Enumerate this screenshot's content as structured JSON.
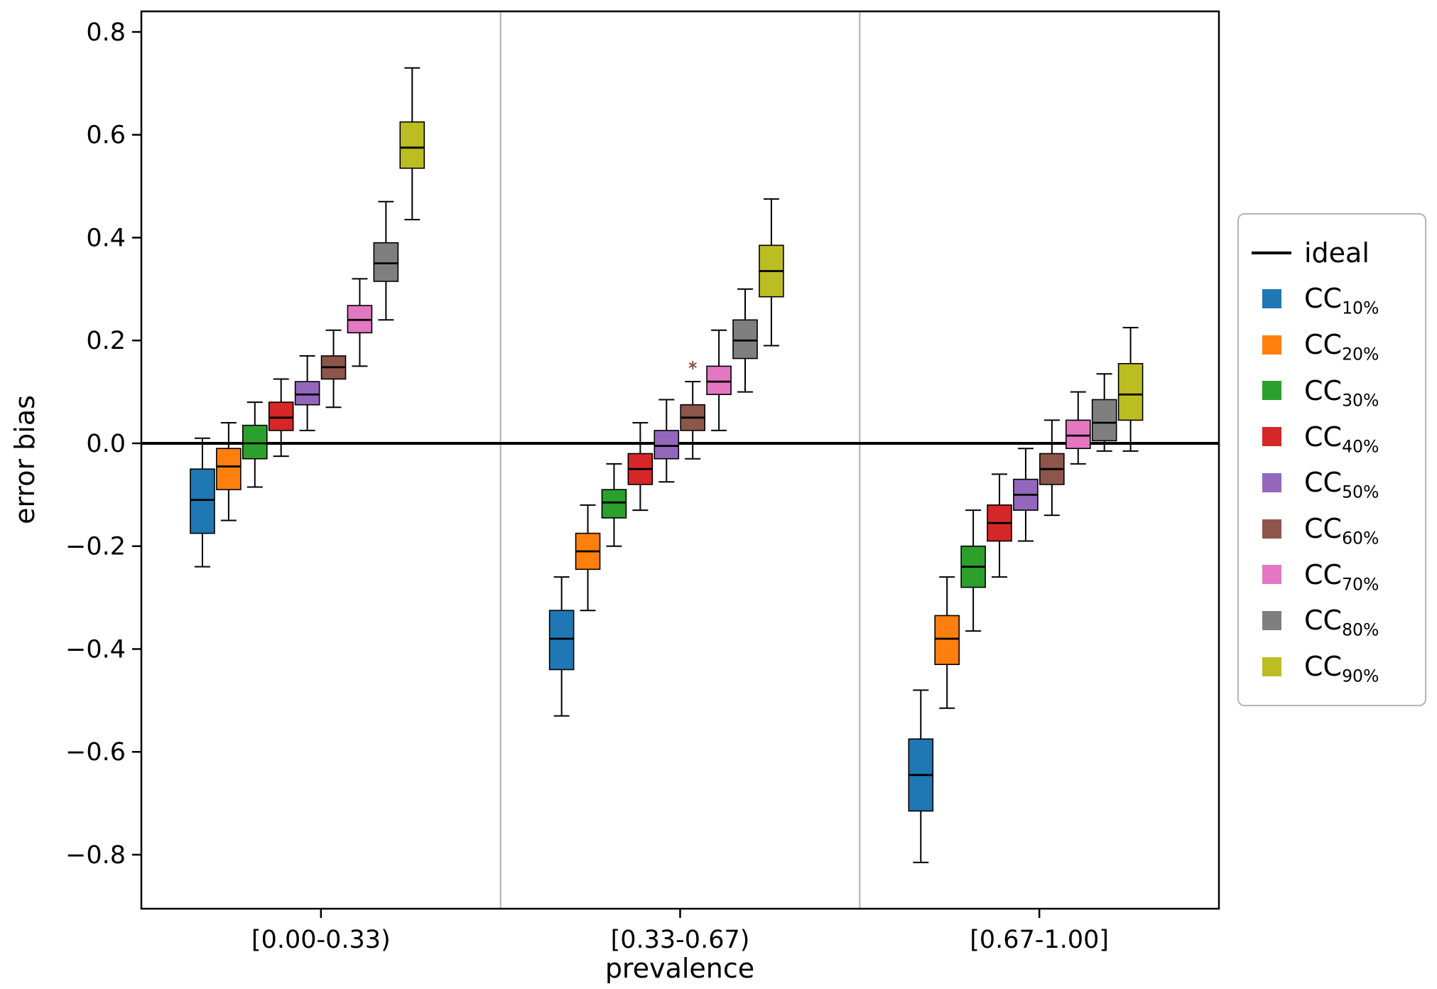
{
  "figure": {
    "background": "#ffffff"
  },
  "chart_data": {
    "type": "boxplot",
    "title": "",
    "xlabel": "prevalence",
    "ylabel": "error bias",
    "ylim": [
      -0.905,
      0.84
    ],
    "yticks": [
      0.8,
      0.6,
      0.4,
      0.2,
      0.0,
      -0.2,
      -0.4,
      -0.6,
      -0.8
    ],
    "categories": [
      "[0.00-0.33)",
      "[0.33-0.67)",
      "[0.67-1.00]"
    ],
    "grid": "vertical-separators-between-groups",
    "legend_position": "right-outside",
    "ideal": {
      "label": "ideal",
      "y": 0.0,
      "color": "#000000"
    },
    "series": [
      {
        "label": "CC",
        "sub": "10%",
        "color": "#1f77b4",
        "boxes": [
          {
            "whisker_low": -0.24,
            "q1": -0.175,
            "median": -0.11,
            "q3": -0.05,
            "whisker_high": 0.01,
            "outliers": []
          },
          {
            "whisker_low": -0.53,
            "q1": -0.44,
            "median": -0.38,
            "q3": -0.325,
            "whisker_high": -0.26,
            "outliers": []
          },
          {
            "whisker_low": -0.815,
            "q1": -0.715,
            "median": -0.645,
            "q3": -0.575,
            "whisker_high": -0.48,
            "outliers": []
          }
        ]
      },
      {
        "label": "CC",
        "sub": "20%",
        "color": "#ff7f0e",
        "boxes": [
          {
            "whisker_low": -0.15,
            "q1": -0.09,
            "median": -0.045,
            "q3": -0.01,
            "whisker_high": 0.04,
            "outliers": []
          },
          {
            "whisker_low": -0.325,
            "q1": -0.245,
            "median": -0.21,
            "q3": -0.175,
            "whisker_high": -0.12,
            "outliers": []
          },
          {
            "whisker_low": -0.515,
            "q1": -0.43,
            "median": -0.38,
            "q3": -0.335,
            "whisker_high": -0.26,
            "outliers": []
          }
        ]
      },
      {
        "label": "CC",
        "sub": "30%",
        "color": "#2ca02c",
        "boxes": [
          {
            "whisker_low": -0.085,
            "q1": -0.03,
            "median": 0.0,
            "q3": 0.035,
            "whisker_high": 0.08,
            "outliers": []
          },
          {
            "whisker_low": -0.2,
            "q1": -0.145,
            "median": -0.115,
            "q3": -0.09,
            "whisker_high": -0.04,
            "outliers": []
          },
          {
            "whisker_low": -0.365,
            "q1": -0.28,
            "median": -0.24,
            "q3": -0.2,
            "whisker_high": -0.13,
            "outliers": []
          }
        ]
      },
      {
        "label": "CC",
        "sub": "40%",
        "color": "#d62728",
        "boxes": [
          {
            "whisker_low": -0.025,
            "q1": 0.025,
            "median": 0.05,
            "q3": 0.08,
            "whisker_high": 0.125,
            "outliers": []
          },
          {
            "whisker_low": -0.13,
            "q1": -0.08,
            "median": -0.05,
            "q3": -0.02,
            "whisker_high": 0.04,
            "outliers": []
          },
          {
            "whisker_low": -0.26,
            "q1": -0.19,
            "median": -0.155,
            "q3": -0.12,
            "whisker_high": -0.06,
            "outliers": []
          }
        ]
      },
      {
        "label": "CC",
        "sub": "50%",
        "color": "#9467bd",
        "boxes": [
          {
            "whisker_low": 0.025,
            "q1": 0.075,
            "median": 0.095,
            "q3": 0.12,
            "whisker_high": 0.17,
            "outliers": []
          },
          {
            "whisker_low": -0.075,
            "q1": -0.03,
            "median": -0.005,
            "q3": 0.025,
            "whisker_high": 0.085,
            "outliers": []
          },
          {
            "whisker_low": -0.19,
            "q1": -0.13,
            "median": -0.1,
            "q3": -0.07,
            "whisker_high": -0.01,
            "outliers": []
          }
        ]
      },
      {
        "label": "CC",
        "sub": "60%",
        "color": "#8c564b",
        "boxes": [
          {
            "whisker_low": 0.07,
            "q1": 0.125,
            "median": 0.148,
            "q3": 0.17,
            "whisker_high": 0.22,
            "outliers": []
          },
          {
            "whisker_low": -0.03,
            "q1": 0.025,
            "median": 0.05,
            "q3": 0.075,
            "whisker_high": 0.12,
            "outliers": [
              0.152
            ]
          },
          {
            "whisker_low": -0.14,
            "q1": -0.08,
            "median": -0.05,
            "q3": -0.02,
            "whisker_high": 0.045,
            "outliers": []
          }
        ]
      },
      {
        "label": "CC",
        "sub": "70%",
        "color": "#e377c2",
        "boxes": [
          {
            "whisker_low": 0.15,
            "q1": 0.215,
            "median": 0.24,
            "q3": 0.268,
            "whisker_high": 0.32,
            "outliers": []
          },
          {
            "whisker_low": 0.025,
            "q1": 0.095,
            "median": 0.12,
            "q3": 0.15,
            "whisker_high": 0.22,
            "outliers": []
          },
          {
            "whisker_low": -0.04,
            "q1": -0.01,
            "median": 0.015,
            "q3": 0.045,
            "whisker_high": 0.1,
            "outliers": []
          }
        ]
      },
      {
        "label": "CC",
        "sub": "80%",
        "color": "#7f7f7f",
        "boxes": [
          {
            "whisker_low": 0.24,
            "q1": 0.315,
            "median": 0.35,
            "q3": 0.39,
            "whisker_high": 0.47,
            "outliers": []
          },
          {
            "whisker_low": 0.1,
            "q1": 0.165,
            "median": 0.2,
            "q3": 0.24,
            "whisker_high": 0.3,
            "outliers": []
          },
          {
            "whisker_low": -0.015,
            "q1": 0.005,
            "median": 0.04,
            "q3": 0.085,
            "whisker_high": 0.135,
            "outliers": []
          }
        ]
      },
      {
        "label": "CC",
        "sub": "90%",
        "color": "#bcbd22",
        "boxes": [
          {
            "whisker_low": 0.435,
            "q1": 0.535,
            "median": 0.575,
            "q3": 0.625,
            "whisker_high": 0.73,
            "outliers": []
          },
          {
            "whisker_low": 0.19,
            "q1": 0.285,
            "median": 0.335,
            "q3": 0.385,
            "whisker_high": 0.475,
            "outliers": []
          },
          {
            "whisker_low": -0.015,
            "q1": 0.045,
            "median": 0.095,
            "q3": 0.155,
            "whisker_high": 0.225,
            "outliers": []
          }
        ]
      }
    ]
  }
}
